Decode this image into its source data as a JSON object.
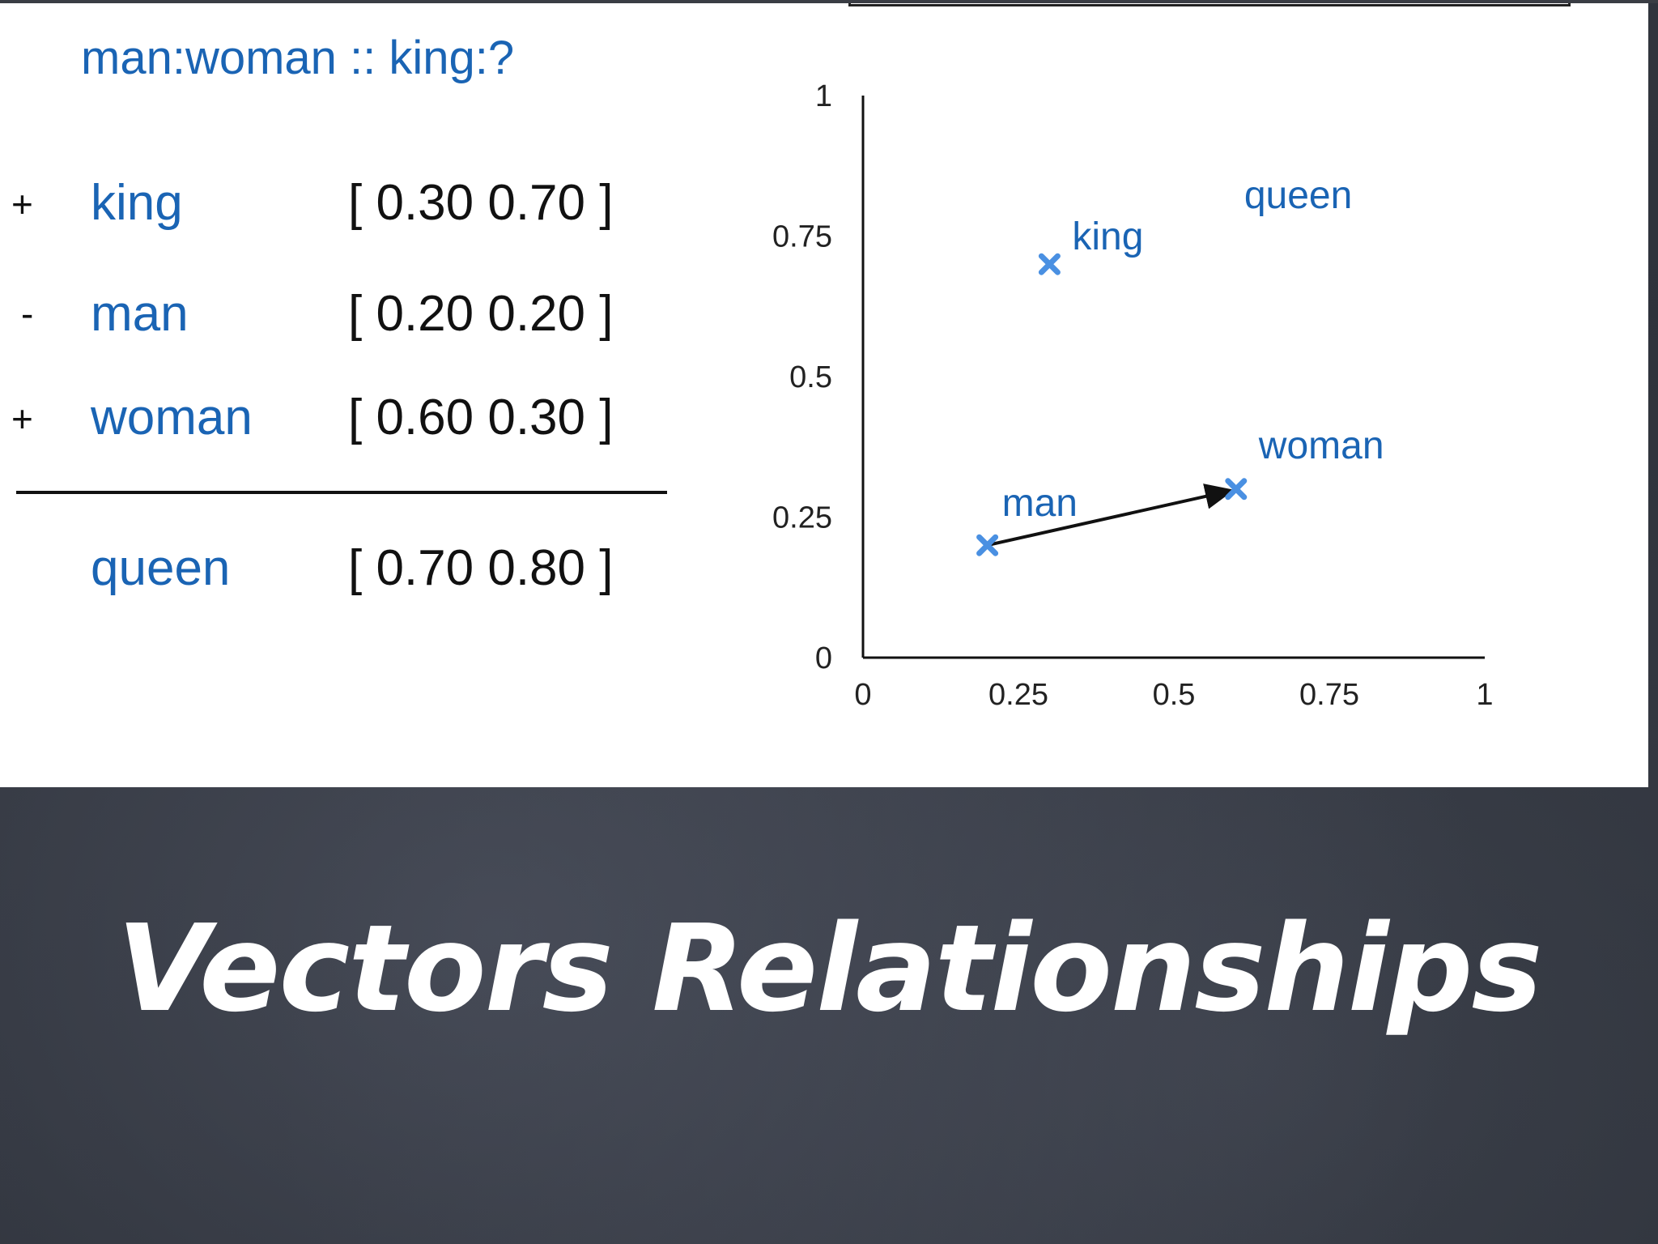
{
  "analogy": "man:woman :: king:?",
  "equation_rows": [
    {
      "op": "+",
      "word": "king",
      "vector": "[ 0.30 0.70 ]"
    },
    {
      "op": "-",
      "word": "man",
      "vector": "[ 0.20 0.20 ]"
    },
    {
      "op": "+",
      "word": "woman",
      "vector": "[ 0.60 0.30 ]"
    }
  ],
  "result_row": {
    "word": "queen",
    "vector": "[ 0.70 0.80 ]"
  },
  "colors": {
    "accent_blue": "#1a64b4",
    "marker_blue": "#4a90e2",
    "text": "#111111"
  },
  "chart_data": {
    "type": "scatter",
    "title": "",
    "xlabel": "",
    "ylabel": "",
    "xlim": [
      0,
      1
    ],
    "ylim": [
      0,
      1
    ],
    "x_ticks": [
      "0",
      "0.25",
      "0.5",
      "0.75",
      "1"
    ],
    "y_ticks": [
      "0",
      "0.25",
      "0.5",
      "0.75",
      "1"
    ],
    "grid": false,
    "points": [
      {
        "label": "king",
        "x": 0.3,
        "y": 0.7,
        "marker": true
      },
      {
        "label": "man",
        "x": 0.2,
        "y": 0.2,
        "marker": true
      },
      {
        "label": "woman",
        "x": 0.6,
        "y": 0.3,
        "marker": true
      },
      {
        "label": "queen",
        "x": 0.7,
        "y": 0.8,
        "marker": false
      }
    ],
    "arrows": [
      {
        "from": "man",
        "to": "woman"
      }
    ]
  },
  "slide_title": "Vectors Relationships"
}
